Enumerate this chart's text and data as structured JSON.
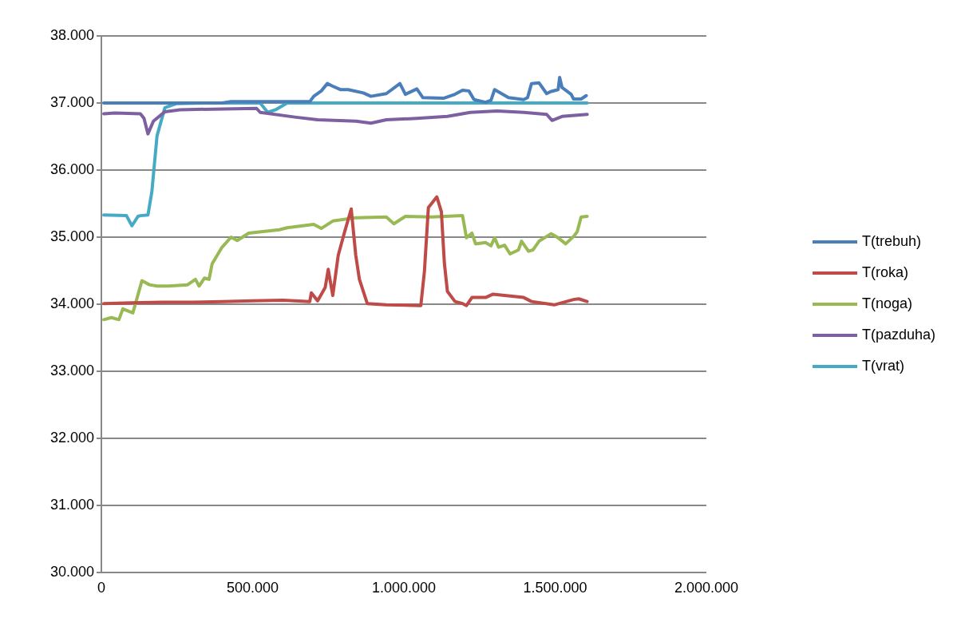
{
  "chart_data": {
    "type": "line",
    "xlim": [
      0,
      2000000
    ],
    "xticks": [
      0,
      {
        "value": 500000,
        "label": "500.000"
      },
      {
        "value": 1000000,
        "label": "1.000.000"
      },
      {
        "value": 1500000,
        "label": "1.500.000"
      },
      {
        "value": 2000000,
        "label": "2.000.000"
      }
    ],
    "ylim": [
      30000,
      38000
    ],
    "yticks": [
      {
        "value": 30000,
        "label": "30.000"
      },
      {
        "value": 31000,
        "label": "31.000"
      },
      {
        "value": 32000,
        "label": "32.000"
      },
      {
        "value": 33000,
        "label": "33.000"
      },
      {
        "value": 34000,
        "label": "34.000"
      },
      {
        "value": 35000,
        "label": "35.000"
      },
      {
        "value": 36000,
        "label": "36.000"
      },
      {
        "value": 37000,
        "label": "37.000"
      },
      {
        "value": 38000,
        "label": "38.000"
      }
    ],
    "grid": "y",
    "legend": "right",
    "marker": "none",
    "line_style": "solid",
    "series": [
      {
        "name": "T(trebuh)",
        "color": "#4a7ebb",
        "x": [
          8000,
          399000,
          429000,
          689000,
          702000,
          727000,
          747000,
          765000,
          790000,
          816000,
          866000,
          891000,
          942000,
          987000,
          1005000,
          1043000,
          1063000,
          1131000,
          1169000,
          1194000,
          1215000,
          1232000,
          1270000,
          1288000,
          1300000,
          1346000,
          1396000,
          1409000,
          1422000,
          1447000,
          1472000,
          1485000,
          1510000,
          1515000,
          1523000,
          1553000,
          1561000,
          1586000,
          1603000
        ],
        "values": [
          37000,
          37000,
          37020,
          37020,
          37100,
          37180,
          37290,
          37250,
          37200,
          37200,
          37150,
          37100,
          37140,
          37290,
          37130,
          37210,
          37080,
          37070,
          37130,
          37190,
          37180,
          37050,
          37010,
          37040,
          37200,
          37080,
          37050,
          37080,
          37290,
          37300,
          37140,
          37170,
          37200,
          37380,
          37230,
          37130,
          37060,
          37060,
          37110
        ]
      },
      {
        "name": "T(roka)",
        "color": "#be4b48",
        "x": [
          8000,
          100000,
          200000,
          300000,
          400000,
          500000,
          600000,
          689000,
          694000,
          715000,
          740000,
          750000,
          765000,
          783000,
          803000,
          826000,
          841000,
          853000,
          879000,
          942000,
          1056000,
          1068000,
          1081000,
          1109000,
          1124000,
          1134000,
          1144000,
          1169000,
          1194000,
          1207000,
          1225000,
          1270000,
          1295000,
          1396000,
          1422000,
          1497000,
          1561000,
          1578000,
          1606000
        ],
        "values": [
          34010,
          34020,
          34030,
          34030,
          34040,
          34050,
          34060,
          34040,
          34170,
          34050,
          34250,
          34520,
          34130,
          34730,
          35060,
          35420,
          34730,
          34370,
          34010,
          33990,
          33980,
          34490,
          35440,
          35600,
          35380,
          34610,
          34190,
          34040,
          34010,
          33980,
          34100,
          34100,
          34150,
          34100,
          34040,
          33990,
          34070,
          34080,
          34040
        ]
      },
      {
        "name": "T(noga)",
        "color": "#98b954",
        "x": [
          8000,
          33000,
          58000,
          71000,
          104000,
          134000,
          159000,
          184000,
          222000,
          285000,
          311000,
          323000,
          341000,
          356000,
          366000,
          399000,
          429000,
          449000,
          487000,
          588000,
          614000,
          702000,
          727000,
          765000,
          841000,
          942000,
          967000,
          1005000,
          1093000,
          1194000,
          1207000,
          1225000,
          1237000,
          1270000,
          1288000,
          1300000,
          1313000,
          1333000,
          1351000,
          1379000,
          1389000,
          1412000,
          1427000,
          1447000,
          1472000,
          1487000,
          1510000,
          1535000,
          1561000,
          1573000,
          1586000,
          1606000
        ],
        "values": [
          33770,
          33800,
          33770,
          33930,
          33870,
          34350,
          34290,
          34270,
          34270,
          34290,
          34370,
          34270,
          34390,
          34370,
          34600,
          34850,
          35000,
          34950,
          35060,
          35110,
          35140,
          35190,
          35130,
          35240,
          35290,
          35300,
          35200,
          35310,
          35300,
          35320,
          34990,
          35060,
          34900,
          34920,
          34870,
          34990,
          34850,
          34880,
          34750,
          34810,
          34940,
          34790,
          34810,
          34940,
          35010,
          35050,
          34990,
          34900,
          35010,
          35080,
          35300,
          35310
        ]
      },
      {
        "name": "T(pazduha)",
        "color": "#7d60a0",
        "x": [
          8000,
          45000,
          129000,
          141000,
          154000,
          172000,
          210000,
          260000,
          513000,
          525000,
          639000,
          715000,
          842000,
          891000,
          942000,
          1043000,
          1144000,
          1220000,
          1308000,
          1396000,
          1472000,
          1490000,
          1523000,
          1606000
        ],
        "values": [
          36840,
          36850,
          36840,
          36770,
          36540,
          36730,
          36870,
          36900,
          36920,
          36860,
          36790,
          36750,
          36730,
          36700,
          36750,
          36770,
          36800,
          36860,
          36880,
          36860,
          36830,
          36740,
          36800,
          36830
        ]
      },
      {
        "name": "T(vrat)",
        "color": "#46aac5",
        "x": [
          8000,
          83000,
          101000,
          121000,
          129000,
          154000,
          167000,
          184000,
          210000,
          247000,
          336000,
          513000,
          525000,
          550000,
          576000,
          614000,
          1606000
        ],
        "values": [
          35330,
          35320,
          35170,
          35310,
          35320,
          35330,
          35680,
          36510,
          36930,
          36990,
          37000,
          37000,
          37000,
          36860,
          36900,
          37000,
          37000
        ]
      }
    ]
  }
}
